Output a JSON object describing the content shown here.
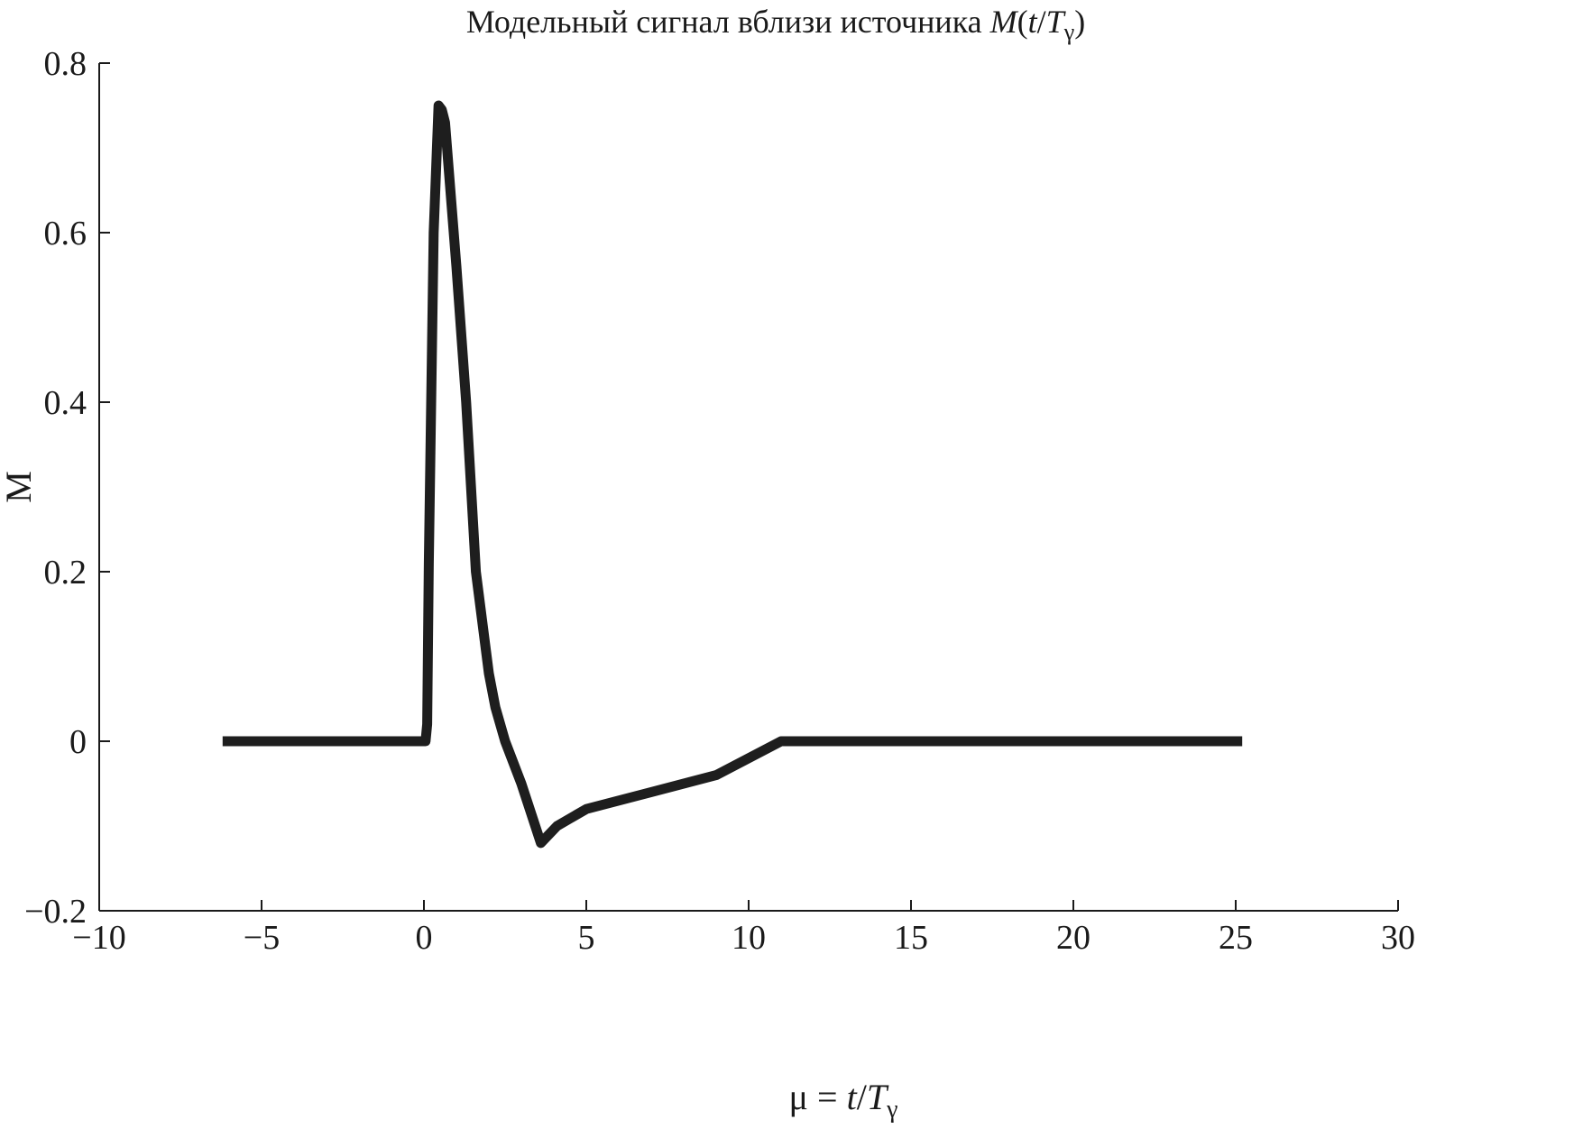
{
  "chart_data": {
    "type": "line",
    "title": "Модельный сигнал вблизи источника",
    "title_formula": {
      "italic_m": "M",
      "open": "(",
      "italic_t": "t",
      "slash": "/",
      "italic_T": "T",
      "sub": "γ",
      "close": ")"
    },
    "xlabel": {
      "prefix": "μ = ",
      "italic_t": "t",
      "slash": "/",
      "italic_T": "T",
      "sub": "γ"
    },
    "ylabel": "M",
    "xlim": [
      -10,
      30
    ],
    "ylim": [
      -0.2,
      0.8
    ],
    "xticks": [
      -10,
      -5,
      0,
      5,
      10,
      15,
      20,
      25,
      30
    ],
    "xtick_labels": [
      "−10",
      "−5",
      "0",
      "5",
      "10",
      "15",
      "20",
      "25",
      "30"
    ],
    "yticks": [
      -0.2,
      0,
      0.2,
      0.4,
      0.6,
      0.8
    ],
    "ytick_labels": [
      "−0.2",
      "0",
      "0.2",
      "0.4",
      "0.6",
      "0.8"
    ],
    "series": [
      {
        "color": "#1e1e1e",
        "x": [
          -6.2,
          0.05,
          0.1,
          0.15,
          0.3,
          0.45,
          0.55,
          0.65,
          1.0,
          1.3,
          1.6,
          2.0,
          2.2,
          2.5,
          3.0,
          3.6,
          4.1,
          5.0,
          7.0,
          9.0,
          11.0,
          25.2
        ],
        "y": [
          0,
          0,
          0.02,
          0.21,
          0.6,
          0.75,
          0.745,
          0.73,
          0.56,
          0.4,
          0.2,
          0.08,
          0.04,
          0.0,
          -0.05,
          -0.12,
          -0.1,
          -0.08,
          -0.06,
          -0.04,
          0.0,
          0.0
        ]
      }
    ],
    "grid": false,
    "legend": "none"
  }
}
